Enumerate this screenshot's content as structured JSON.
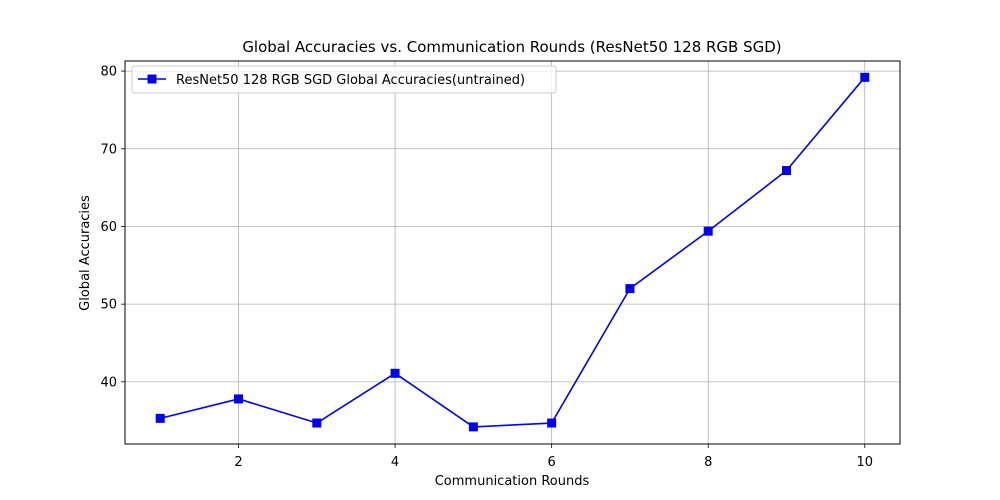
{
  "chart_data": {
    "type": "line",
    "title": "Global Accuracies vs. Communication Rounds (ResNet50 128 RGB SGD)",
    "xlabel": "Communication Rounds",
    "ylabel": "Global Accuracies",
    "xlim": [
      0.55,
      10.45
    ],
    "ylim": [
      32.0,
      81.3
    ],
    "xticks": [
      2,
      4,
      6,
      8,
      10
    ],
    "yticks": [
      40,
      50,
      60,
      70,
      80
    ],
    "grid": true,
    "legend_position": "top-left",
    "series": [
      {
        "name": "ResNet50 128 RGB SGD Global Accuracies(untrained)",
        "color": "#0000ff",
        "marker": "square",
        "x": [
          1,
          2,
          3,
          4,
          5,
          6,
          7,
          8,
          9,
          10
        ],
        "y": [
          35.3,
          37.8,
          34.7,
          41.1,
          34.2,
          34.7,
          52.0,
          59.4,
          67.2,
          79.2
        ]
      }
    ]
  }
}
